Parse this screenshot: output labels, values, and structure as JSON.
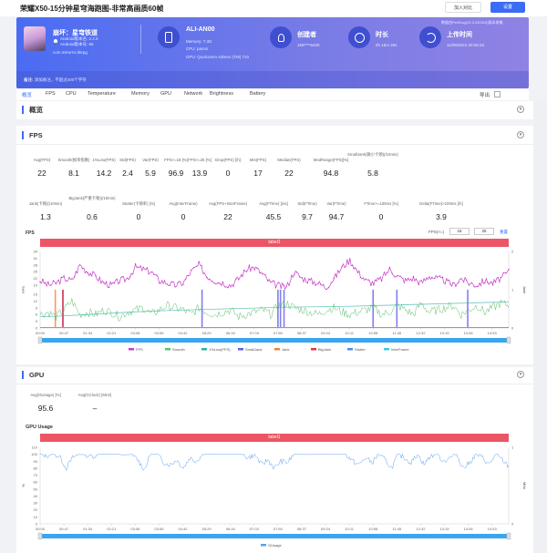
{
  "header": {
    "title": "荣耀X50-15分钟星穹海跑图-非常高画质60帧",
    "compare_button": "加入对比",
    "settings_button": "设置"
  },
  "banner": {
    "app_name": "崩坏：星穹铁道",
    "android_version_name": "Android版本名: 2.2.0",
    "android_version_code": "Android版本号: 66",
    "package": "com.miHoYo.hkrpg",
    "device": "ALI-AN00",
    "memory": "Memory: 7.3G",
    "cpu": "CPU: parrot",
    "gpu": "GPU: Qualcomm Adreno (TM) 710",
    "creator_label": "创建者",
    "creator": "159****6400",
    "duration_label": "时长",
    "duration": "0h 15m 26s",
    "upload_label": "上传时间",
    "upload_time": "11/05/2024 20:06:33",
    "source": "数据由PerfDog(10.2.240316)版本收集",
    "note_label": "备注:",
    "note_placeholder": "添加备注，不超过200个字符"
  },
  "tabs": [
    "概览",
    "FPS",
    "CPU",
    "Temperature",
    "Memory",
    "GPU",
    "Network",
    "Brightness",
    "Battery"
  ],
  "active_tab": 0,
  "export_label": "导出",
  "overview": {
    "title": "概览"
  },
  "fps": {
    "title": "FPS",
    "metrics_row1": [
      [
        "Avg(FPS)",
        "22"
      ],
      [
        "Smooth(帧率指数)",
        "8.1"
      ],
      [
        "1%Low(FPS)",
        "14.2"
      ],
      [
        "Std(FPS)",
        "2.4"
      ],
      [
        "Var(FPS)",
        "5.9"
      ],
      [
        "FPS>=18 [%]",
        "96.9"
      ],
      [
        "FPS>=25 [%]",
        "13.9"
      ],
      [
        "Drop(FPS) [/h]",
        "0"
      ],
      [
        "Min(FPS)",
        "17"
      ],
      [
        "Median(FPS)",
        "22"
      ],
      [
        "MedRange(FPS)[%]",
        "94.8"
      ],
      [
        "SmallJank(微小卡顿)(/10min)",
        "5.8"
      ]
    ],
    "metrics_row2": [
      [
        "Jank(卡顿)(/10min)",
        "1.3"
      ],
      [
        "BigJank(严重卡顿)(/10min)",
        "0.6"
      ],
      [
        "Stutter(卡顿率) [%]",
        "0"
      ],
      [
        "Avg(InterFrame)",
        "0"
      ],
      [
        "Avg(FPS+InterFrame)",
        "22"
      ],
      [
        "Avg(FTime) [ms]",
        "45.5"
      ],
      [
        "Std(FTime)",
        "9.7"
      ],
      [
        "Var(FTime)",
        "94.7"
      ],
      [
        "FTime>=100ms [%]",
        "0"
      ],
      [
        "Delta(FTime)>100ms [/h]",
        "3.9"
      ]
    ],
    "chart_title": "FPS",
    "threshold_label": "FPS(>=)",
    "threshold1": "18",
    "threshold2": "25",
    "reset_label": "重置",
    "band_label": "label1"
  },
  "gpu": {
    "title": "GPU",
    "metrics": [
      [
        "Avg(GUsage) [%]",
        "95.6"
      ],
      [
        "Avg(GClock) [MHz]",
        "–"
      ]
    ],
    "chart_title": "GPU Usage",
    "band_label": "label1"
  },
  "chart_data": [
    {
      "type": "line",
      "ylabel": "FPS",
      "y2label": "Jank",
      "ylim": [
        0,
        34
      ],
      "y2lim": [
        0,
        2
      ],
      "yticks": [
        0,
        3,
        6,
        9,
        12,
        15,
        19,
        22,
        25,
        28,
        31,
        34
      ],
      "y2ticks": [
        0,
        1,
        2
      ],
      "xticks": [
        "00:00",
        "00:47",
        "01:34",
        "02:21",
        "03:08",
        "03:55",
        "04:42",
        "05:29",
        "06:16",
        "07:03",
        "07:50",
        "08:37",
        "09:24",
        "10:11",
        "10:58",
        "11:45",
        "12:32",
        "13:19",
        "14:06",
        "14:53"
      ],
      "legend": [
        "FPS",
        "Smooth",
        "1%Low(FPS)",
        "SmallJank",
        "Jank",
        "BigJank",
        "Stutter",
        "InterFrame"
      ],
      "colors": {
        "FPS": "#c83ec8",
        "Smooth": "#5cbf6a",
        "1%Low(FPS)": "#30b0a0",
        "SmallJank": "#6060e8",
        "Jank": "#f08040",
        "BigJank": "#e83030",
        "Stutter": "#4a90e8",
        "InterFrame": "#40c8d8"
      },
      "x_seconds_range": [
        0,
        926
      ],
      "series": [
        {
          "name": "FPS",
          "values": [
            21,
            19,
            20,
            22,
            21,
            28,
            25,
            23,
            20,
            19,
            21,
            22,
            27,
            26,
            25,
            21,
            20,
            19,
            20,
            25,
            28,
            23,
            21,
            20,
            19,
            22,
            26,
            27,
            24,
            20,
            19,
            18,
            25,
            22,
            21,
            20,
            18,
            22,
            27,
            30,
            25,
            21,
            20,
            22,
            26,
            23,
            21,
            22,
            20,
            23,
            22,
            21,
            19,
            22,
            20,
            19,
            21,
            20,
            22,
            25
          ]
        },
        {
          "name": "Smooth",
          "values": [
            6,
            7,
            5,
            8,
            12,
            6,
            7,
            6,
            8,
            7,
            5,
            7,
            8,
            9,
            6,
            8,
            10,
            9,
            8,
            6,
            9,
            7,
            6,
            7,
            8,
            5,
            6,
            7,
            8,
            6,
            10,
            11,
            9,
            8,
            7,
            6,
            8,
            9,
            7,
            6,
            7,
            8,
            9,
            6,
            7,
            10,
            8,
            6,
            11,
            7,
            8,
            9,
            10,
            6,
            8,
            10,
            7,
            9,
            11,
            10
          ]
        },
        {
          "name": "1%Low(FPS)",
          "values": [
            5,
            5.2,
            5.6,
            6,
            6.4,
            6.8,
            7.2,
            7.5,
            7.8,
            8,
            8.2,
            8.4,
            8.6,
            8.8,
            9,
            9.2,
            9.3,
            9.4,
            9.5,
            9.6,
            9.8,
            10,
            10.2,
            10.4,
            10.6,
            10.8,
            11,
            11.2,
            11.4,
            11.6
          ]
        }
      ],
      "events": {
        "SmallJank": [
          "00:45",
          "05:20",
          "07:50",
          "07:55",
          "08:02",
          "10:58",
          "11:45",
          "14:05"
        ],
        "Jank": [
          "00:30"
        ],
        "BigJank": [
          "00:45"
        ]
      }
    },
    {
      "type": "line",
      "ylabel": "%",
      "y2label": "MHz",
      "ylim": [
        0,
        110
      ],
      "y2lim": [
        0,
        1
      ],
      "yticks": [
        0,
        10,
        20,
        30,
        40,
        50,
        60,
        70,
        80,
        90,
        100,
        110
      ],
      "y2ticks": [
        0,
        1
      ],
      "xticks": [
        "00:00",
        "00:47",
        "01:34",
        "02:21",
        "03:08",
        "03:55",
        "04:42",
        "05:29",
        "06:16",
        "07:03",
        "07:50",
        "08:37",
        "09:24",
        "10:11",
        "10:58",
        "11:45",
        "12:32",
        "13:19",
        "14:06",
        "14:53"
      ],
      "legend": [
        "GUsage"
      ],
      "colors": {
        "GUsage": "#5aa0f0"
      },
      "series": [
        {
          "name": "GUsage",
          "values": [
            100,
            98,
            100,
            97,
            80,
            95,
            100,
            99,
            97,
            100,
            100,
            100,
            100,
            99,
            100,
            92,
            78,
            100,
            100,
            88,
            85,
            92,
            80,
            95,
            90,
            100,
            100,
            100,
            100,
            100,
            100,
            100,
            95,
            100,
            85,
            92,
            80,
            90,
            88,
            100,
            100,
            100,
            100,
            100,
            100,
            100,
            100,
            100,
            90,
            85,
            95,
            88,
            100,
            92,
            80,
            100,
            95,
            88,
            100,
            85,
            98,
            100,
            90,
            95,
            100,
            80,
            88,
            100,
            95,
            85,
            100,
            92,
            82
          ]
        }
      ]
    }
  ]
}
